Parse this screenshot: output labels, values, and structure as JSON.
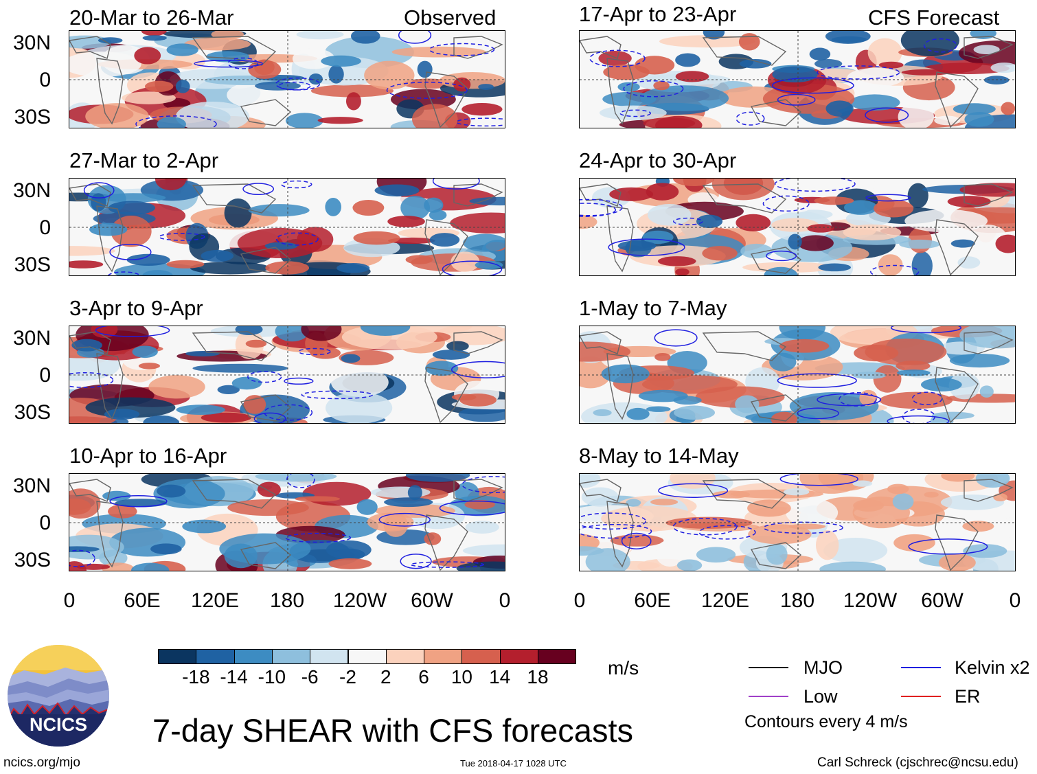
{
  "panels_left": [
    {
      "title": "20-Mar to 26-Mar",
      "tag": "Observed"
    },
    {
      "title": "27-Mar to 2-Apr",
      "tag": ""
    },
    {
      "title": "3-Apr to 9-Apr",
      "tag": ""
    },
    {
      "title": "10-Apr to 16-Apr",
      "tag": ""
    }
  ],
  "panels_right": [
    {
      "title": "17-Apr to 23-Apr",
      "tag": "CFS Forecast"
    },
    {
      "title": "24-Apr to 30-Apr",
      "tag": ""
    },
    {
      "title": "1-May to 7-May",
      "tag": ""
    },
    {
      "title": "8-May to 14-May",
      "tag": ""
    }
  ],
  "lat_labels": [
    "30N",
    "0",
    "30S"
  ],
  "lon_labels": [
    "0",
    "60E",
    "120E",
    "180",
    "120W",
    "60W",
    "0"
  ],
  "colorbar": {
    "labels": [
      "-18",
      "-14",
      "-10",
      "-6",
      "-2",
      "2",
      "6",
      "10",
      "14",
      "18"
    ],
    "colors": [
      "#0b3560",
      "#1f62a3",
      "#3d8cc2",
      "#8ebfdd",
      "#d1e4f0",
      "#f7f7f7",
      "#fbd2bd",
      "#f0a283",
      "#d6604e",
      "#b41f2d",
      "#67001f"
    ],
    "units": "m/s"
  },
  "legend": {
    "mjo": "MJO",
    "kelvin": "Kelvin x2",
    "low": "Low",
    "er": "ER",
    "contours": "Contours every 4 m/s",
    "mjo_color": "#000000",
    "kelvin_color": "#1f1fe0",
    "low_color": "#a040c8",
    "er_color": "#e02020"
  },
  "footer": {
    "title": "7-day SHEAR with CFS forecasts",
    "left": "ncics.org/mjo",
    "center": "Tue 2018-04-17 1028 UTC",
    "right": "Carl Schreck (cjschrec@ncsu.edu)",
    "logo_text": "NCICS"
  }
}
